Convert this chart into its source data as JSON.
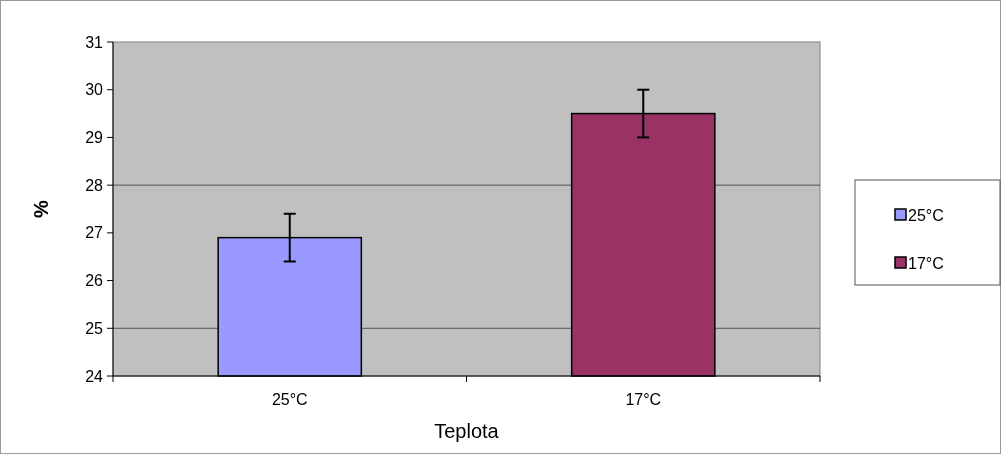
{
  "chart_data": {
    "type": "bar",
    "xlabel": "Teplota",
    "ylabel": "%",
    "categories": [
      "25°C",
      "17°C"
    ],
    "series": [
      {
        "name": "25°C",
        "color": "#9999ff",
        "values": [
          26.9,
          null
        ],
        "errors": [
          0.5,
          null
        ]
      },
      {
        "name": "17°C",
        "color": "#993366",
        "values": [
          null,
          29.5
        ],
        "errors": [
          null,
          0.5
        ]
      }
    ],
    "ylim": [
      24,
      31
    ],
    "yticks": [
      24,
      25,
      26,
      27,
      28,
      29,
      30,
      31
    ],
    "grid": false,
    "ref_lines": [
      {
        "axis": "y",
        "value": 25,
        "color": "#555555"
      },
      {
        "axis": "y",
        "value": 28,
        "color": "#555555"
      }
    ],
    "legend": "right"
  }
}
